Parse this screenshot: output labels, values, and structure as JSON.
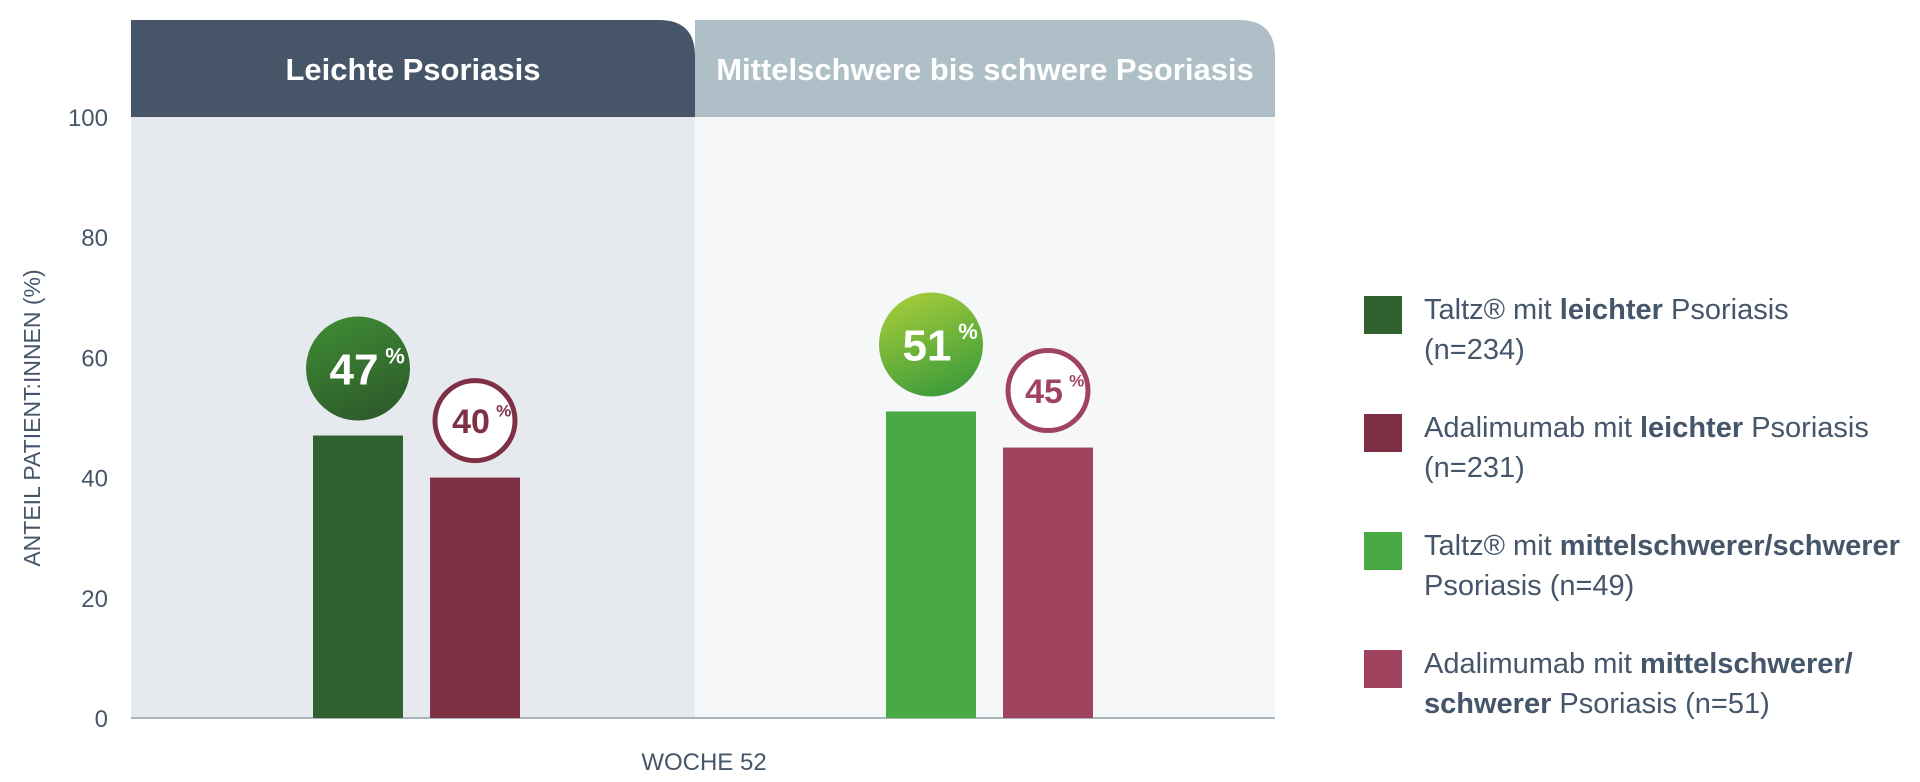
{
  "chart_data": {
    "type": "bar",
    "ylabel": "ANTEIL PATIENT:INNEN (%)",
    "xlabel": "WOCHE 52",
    "ylim": [
      0,
      100
    ],
    "yticks": [
      "0",
      "20",
      "40",
      "60",
      "80",
      "100"
    ],
    "grid": false,
    "legend_position": "right",
    "groups": [
      {
        "title": "Leichte Psoriasis",
        "header_color": "#465668",
        "panel_color": "#e6eaee"
      },
      {
        "title": "Mittelschwere bis schwere Psoriasis",
        "header_color": "#aebfc7",
        "panel_color": "#f5f7f9"
      }
    ],
    "series": [
      {
        "name": "Taltz® mit leichter Psoriasis (n=234)",
        "group": 0,
        "value": 47,
        "label": "47",
        "unit": "%",
        "color": "#31612f",
        "badge": "filled",
        "badge_gradient": [
          "#3e8a34",
          "#2e5c2b"
        ]
      },
      {
        "name": "Adalimumab mit leichter Psoriasis (n=231)",
        "group": 0,
        "value": 40,
        "label": "40",
        "unit": "%",
        "color": "#7e3045",
        "badge": "outline"
      },
      {
        "name": "Taltz® mit mittelschwerer/schwerer Psoriasis (n=49)",
        "group": 1,
        "value": 51,
        "label": "51",
        "unit": "%",
        "color": "#49aa43",
        "badge": "filled",
        "badge_gradient": [
          "#a6cd3a",
          "#3f9c3a"
        ]
      },
      {
        "name": "Adalimumab mit mittelschwerer/schwerer Psoriasis (n=51)",
        "group": 1,
        "value": 45,
        "label": "45",
        "unit": "%",
        "color": "#a0435e",
        "badge": "outline"
      }
    ]
  },
  "legend": [
    {
      "color": "#31612f",
      "parts": [
        {
          "t": "Taltz® mit ",
          "b": false
        },
        {
          "t": "leichter",
          "b": true
        },
        {
          "t": " Psoriasis",
          "b": false
        },
        {
          "br": true
        },
        {
          "t": "(n=234)",
          "b": false
        }
      ]
    },
    {
      "color": "#7e3045",
      "parts": [
        {
          "t": "Adalimumab mit ",
          "b": false
        },
        {
          "t": "leichter",
          "b": true
        },
        {
          "t": " Psoriasis",
          "b": false
        },
        {
          "br": true
        },
        {
          "t": "(n=231)",
          "b": false
        }
      ]
    },
    {
      "color": "#49aa43",
      "parts": [
        {
          "t": "Taltz® mit ",
          "b": false
        },
        {
          "t": "mittelschwerer/schwerer",
          "b": true
        },
        {
          "br": true
        },
        {
          "t": "Psoriasis (n=49)",
          "b": false
        }
      ]
    },
    {
      "color": "#a0435e",
      "parts": [
        {
          "t": "Adalimumab mit ",
          "b": false
        },
        {
          "t": "mittelschwerer/",
          "b": true
        },
        {
          "br": true
        },
        {
          "t": "schwerer",
          "b": true
        },
        {
          "t": " Psoriasis (n=51)",
          "b": false
        }
      ]
    }
  ]
}
